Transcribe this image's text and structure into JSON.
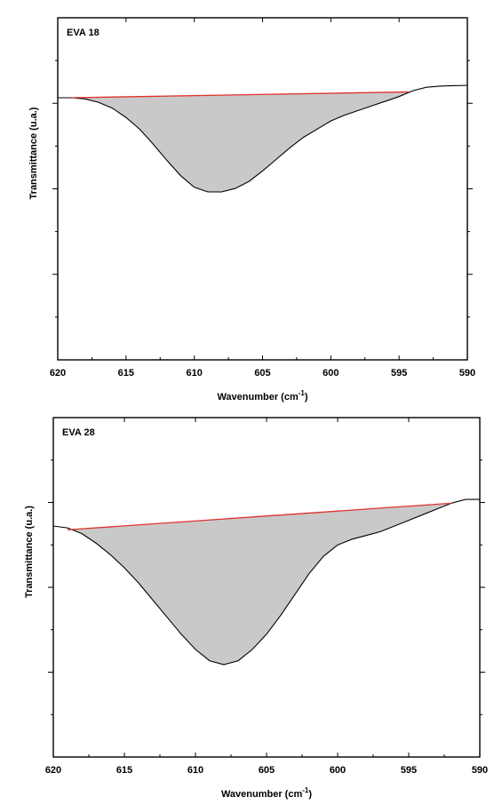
{
  "chart_data": [
    {
      "type": "area",
      "title": "EVA 18",
      "xlabel": "Wavenumber (cm",
      "xlabel_sup": "-1",
      "xlabel_end": ")",
      "ylabel": "Transmittance (u.a.)",
      "xlim": [
        620,
        590
      ],
      "x_reversed": true,
      "ylim": [
        0,
        1
      ],
      "y_ticks_labeled": false,
      "y_ticks": [
        0.1,
        0.3,
        0.5,
        0.7,
        0.9
      ],
      "x_ticks": [
        620,
        615,
        610,
        605,
        600,
        595,
        590
      ],
      "x_tick_labels": [
        "620",
        "615",
        "610",
        "605",
        "600",
        "595",
        "590"
      ],
      "spectrum": [
        [
          620,
          0.98
        ],
        [
          619,
          0.98
        ],
        [
          618,
          0.975
        ],
        [
          617,
          0.96
        ],
        [
          616,
          0.935
        ],
        [
          615,
          0.895
        ],
        [
          614,
          0.845
        ],
        [
          613,
          0.78
        ],
        [
          612,
          0.71
        ],
        [
          611,
          0.645
        ],
        [
          610,
          0.595
        ],
        [
          609,
          0.575
        ],
        [
          608,
          0.575
        ],
        [
          607,
          0.59
        ],
        [
          606,
          0.62
        ],
        [
          605,
          0.665
        ],
        [
          604,
          0.715
        ],
        [
          603,
          0.765
        ],
        [
          602,
          0.81
        ],
        [
          601,
          0.845
        ],
        [
          600,
          0.88
        ],
        [
          599,
          0.905
        ],
        [
          598,
          0.925
        ],
        [
          597,
          0.945
        ],
        [
          596,
          0.965
        ],
        [
          595,
          0.985
        ],
        [
          594,
          1.01
        ],
        [
          593,
          1.025
        ],
        [
          592,
          1.03
        ],
        [
          591,
          1.032
        ],
        [
          590,
          1.033
        ]
      ],
      "baseline": {
        "x_start": 619,
        "y_start": 0.98,
        "x_end": 594.3,
        "y_end": 1.005,
        "color": "#e0322d"
      },
      "fill_color": "#c9c9c9"
    },
    {
      "type": "area",
      "title": "EVA  28",
      "xlabel": "Wavenumber (cm",
      "xlabel_sup": "-1",
      "xlabel_end": ")",
      "ylabel": "Transmittance (u.a.)",
      "xlim": [
        620,
        590
      ],
      "x_reversed": true,
      "ylim": [
        0,
        1
      ],
      "y_ticks_labeled": false,
      "y_ticks": [
        0.1,
        0.3,
        0.5,
        0.7,
        0.9
      ],
      "x_ticks": [
        620,
        615,
        610,
        605,
        600,
        595,
        590
      ],
      "x_tick_labels": [
        "620",
        "615",
        "610",
        "605",
        "600",
        "595",
        "590"
      ],
      "spectrum": [
        [
          620,
          0.95
        ],
        [
          619,
          0.945
        ],
        [
          618,
          0.93
        ],
        [
          617,
          0.905
        ],
        [
          616,
          0.875
        ],
        [
          615,
          0.84
        ],
        [
          614,
          0.8
        ],
        [
          613,
          0.755
        ],
        [
          612,
          0.71
        ],
        [
          611,
          0.665
        ],
        [
          610,
          0.625
        ],
        [
          609,
          0.595
        ],
        [
          608,
          0.585
        ],
        [
          607,
          0.595
        ],
        [
          606,
          0.625
        ],
        [
          605,
          0.665
        ],
        [
          604,
          0.715
        ],
        [
          603,
          0.77
        ],
        [
          602,
          0.825
        ],
        [
          601,
          0.87
        ],
        [
          600,
          0.9
        ],
        [
          599,
          0.915
        ],
        [
          598,
          0.925
        ],
        [
          597,
          0.935
        ],
        [
          596,
          0.95
        ],
        [
          595,
          0.965
        ],
        [
          594,
          0.98
        ],
        [
          593,
          0.995
        ],
        [
          592,
          1.01
        ],
        [
          591,
          1.02
        ],
        [
          590,
          1.02
        ]
      ],
      "baseline": {
        "x_start": 619,
        "y_start": 0.94,
        "x_end": 592,
        "y_end": 1.01,
        "color": "#e0322d"
      },
      "fill_color": "#c9c9c9"
    }
  ]
}
